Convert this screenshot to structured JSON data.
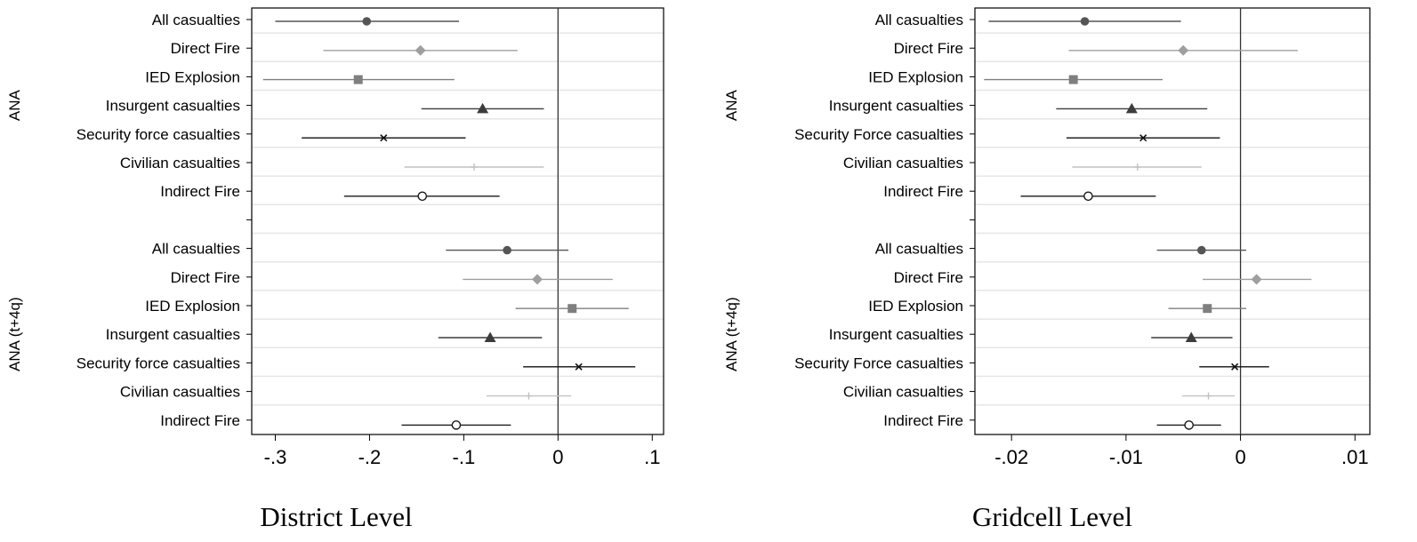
{
  "chart_data": [
    {
      "type": "scatter",
      "title": "District Level",
      "xlim": [
        -0.325,
        0.112
      ],
      "x_ticks": [
        -0.3,
        -0.2,
        -0.1,
        0,
        0.1
      ],
      "x_tick_labels": [
        "-.3",
        "-.2",
        "-.1",
        "0",
        ".1"
      ],
      "reference_line_x": 0,
      "grid": "horizontal",
      "groups": [
        {
          "label": "ANA",
          "rows": [
            {
              "label": "All casualties",
              "estimate": -0.203,
              "ci": [
                -0.3,
                -0.105
              ]
            },
            {
              "label": "Direct Fire",
              "estimate": -0.146,
              "ci": [
                -0.249,
                -0.043
              ]
            },
            {
              "label": "IED Explosion",
              "estimate": -0.212,
              "ci": [
                -0.313,
                -0.11
              ]
            },
            {
              "label": "Insurgent casualties",
              "estimate": -0.08,
              "ci": [
                -0.145,
                -0.015
              ]
            },
            {
              "label": "Security force casualties",
              "estimate": -0.185,
              "ci": [
                -0.272,
                -0.098
              ]
            },
            {
              "label": "Civilian casualties",
              "estimate": -0.089,
              "ci": [
                -0.163,
                -0.015
              ]
            },
            {
              "label": "Indirect Fire",
              "estimate": -0.144,
              "ci": [
                -0.227,
                -0.062
              ]
            }
          ]
        },
        {
          "label": "ANA (t+4q)",
          "rows": [
            {
              "label": "All casualties",
              "estimate": -0.054,
              "ci": [
                -0.119,
                0.011
              ]
            },
            {
              "label": "Direct Fire",
              "estimate": -0.022,
              "ci": [
                -0.101,
                0.058
              ]
            },
            {
              "label": "IED Explosion",
              "estimate": 0.015,
              "ci": [
                -0.045,
                0.075
              ]
            },
            {
              "label": "Insurgent casualties",
              "estimate": -0.072,
              "ci": [
                -0.127,
                -0.017
              ]
            },
            {
              "label": "Security force casualties",
              "estimate": 0.022,
              "ci": [
                -0.037,
                0.082
              ]
            },
            {
              "label": "Civilian casualties",
              "estimate": -0.031,
              "ci": [
                -0.076,
                0.014
              ]
            },
            {
              "label": "Indirect Fire",
              "estimate": -0.108,
              "ci": [
                -0.166,
                -0.05
              ]
            }
          ]
        }
      ]
    },
    {
      "type": "scatter",
      "title": "Gridcell Level",
      "xlim": [
        -0.0232,
        0.0113
      ],
      "x_ticks": [
        -0.02,
        -0.01,
        0,
        0.01
      ],
      "x_tick_labels": [
        "-.02",
        "-.01",
        "0",
        ".01"
      ],
      "reference_line_x": 0,
      "grid": "horizontal",
      "groups": [
        {
          "label": "ANA",
          "rows": [
            {
              "label": "All casualties",
              "estimate": -0.0136,
              "ci": [
                -0.022,
                -0.0052
              ]
            },
            {
              "label": "Direct Fire",
              "estimate": -0.005,
              "ci": [
                -0.015,
                0.005
              ]
            },
            {
              "label": "IED Explosion",
              "estimate": -0.0146,
              "ci": [
                -0.0224,
                -0.0068
              ]
            },
            {
              "label": "Insurgent casualties",
              "estimate": -0.0095,
              "ci": [
                -0.0161,
                -0.0029
              ]
            },
            {
              "label": "Security Force casualties",
              "estimate": -0.0085,
              "ci": [
                -0.0152,
                -0.0018
              ]
            },
            {
              "label": "Civilian casualties",
              "estimate": -0.009,
              "ci": [
                -0.0147,
                -0.0034
              ]
            },
            {
              "label": "Indirect Fire",
              "estimate": -0.0133,
              "ci": [
                -0.0192,
                -0.0074
              ]
            }
          ]
        },
        {
          "label": "ANA (t+4q)",
          "rows": [
            {
              "label": "All casualties",
              "estimate": -0.0034,
              "ci": [
                -0.0073,
                0.0005
              ]
            },
            {
              "label": "Direct Fire",
              "estimate": 0.0014,
              "ci": [
                -0.0033,
                0.0062
              ]
            },
            {
              "label": "IED Explosion",
              "estimate": -0.0029,
              "ci": [
                -0.0063,
                0.0005
              ]
            },
            {
              "label": "Insurgent casualties",
              "estimate": -0.0043,
              "ci": [
                -0.0078,
                -0.0007
              ]
            },
            {
              "label": "Security Force casualties",
              "estimate": -0.0005,
              "ci": [
                -0.0036,
                0.0025
              ]
            },
            {
              "label": "Civilian casualties",
              "estimate": -0.0028,
              "ci": [
                -0.0051,
                -0.0005
              ]
            },
            {
              "label": "Indirect Fire",
              "estimate": -0.0045,
              "ci": [
                -0.0073,
                -0.0017
              ]
            }
          ]
        }
      ]
    }
  ]
}
